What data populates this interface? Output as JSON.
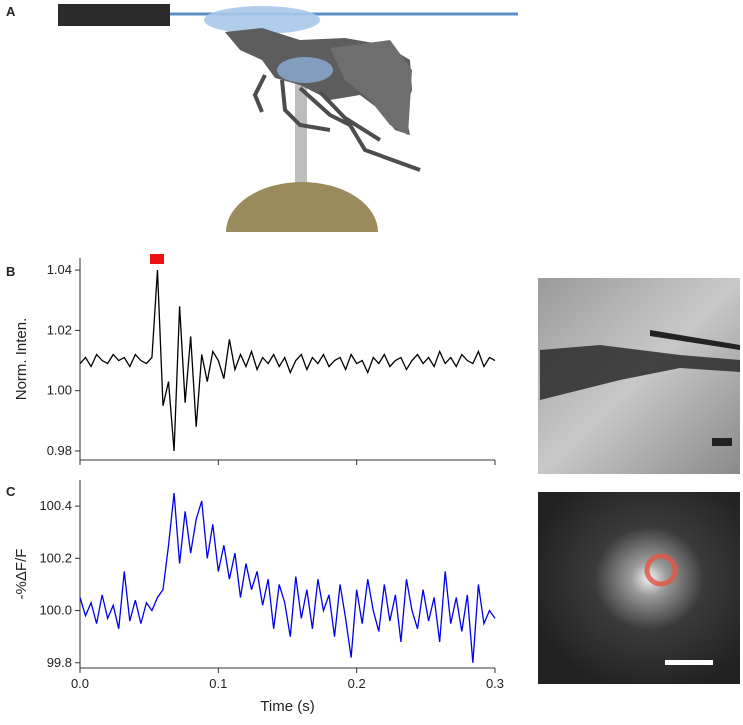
{
  "figure": {
    "panel_labels": [
      "A",
      "B",
      "C"
    ]
  },
  "chart_data": [
    {
      "type": "line",
      "ylabel": "Norm. Inten.",
      "x": [
        0,
        0.004,
        0.008,
        0.012,
        0.016,
        0.02,
        0.024,
        0.028,
        0.032,
        0.036,
        0.04,
        0.044,
        0.048,
        0.052,
        0.056,
        0.06,
        0.064,
        0.068,
        0.072,
        0.076,
        0.08,
        0.084,
        0.088,
        0.092,
        0.096,
        0.1,
        0.104,
        0.108,
        0.112,
        0.116,
        0.12,
        0.124,
        0.128,
        0.132,
        0.136,
        0.14,
        0.144,
        0.148,
        0.152,
        0.156,
        0.16,
        0.164,
        0.168,
        0.172,
        0.176,
        0.18,
        0.184,
        0.188,
        0.192,
        0.196,
        0.2,
        0.204,
        0.208,
        0.212,
        0.216,
        0.22,
        0.224,
        0.228,
        0.232,
        0.236,
        0.24,
        0.244,
        0.248,
        0.252,
        0.256,
        0.26,
        0.264,
        0.268,
        0.272,
        0.276,
        0.28,
        0.284,
        0.288,
        0.292,
        0.296,
        0.3
      ],
      "series": [
        {
          "color": "#000000",
          "values": [
            1.009,
            1.011,
            1.008,
            1.012,
            1.01,
            1.009,
            1.012,
            1.01,
            1.011,
            1.008,
            1.012,
            1.01,
            1.009,
            1.011,
            1.04,
            0.995,
            1.003,
            0.98,
            1.028,
            0.996,
            1.018,
            0.988,
            1.012,
            1.003,
            1.013,
            1.01,
            1.004,
            1.017,
            1.007,
            1.012,
            1.008,
            1.013,
            1.007,
            1.011,
            1.009,
            1.012,
            1.008,
            1.011,
            1.006,
            1.01,
            1.012,
            1.007,
            1.011,
            1.009,
            1.012,
            1.008,
            1.01,
            1.011,
            1.007,
            1.012,
            1.009,
            1.01,
            1.006,
            1.011,
            1.009,
            1.012,
            1.008,
            1.01,
            1.011,
            1.007,
            1.01,
            1.012,
            1.009,
            1.011,
            1.008,
            1.013,
            1.009,
            1.011,
            1.008,
            1.012,
            1.01,
            1.009,
            1.013,
            1.008,
            1.011,
            1.01
          ]
        }
      ],
      "xlim": [
        0,
        0.3
      ],
      "ylim": [
        0.977,
        1.044
      ],
      "yticks": [
        0.98,
        {
          "value": 1,
          "label": "1.00"
        },
        1.02,
        1.04
      ]
    },
    {
      "type": "line",
      "ylabel": "-%ΔF/F",
      "xlabel": "Time (s)",
      "x": [
        0,
        0.004,
        0.008,
        0.012,
        0.016,
        0.02,
        0.024,
        0.028,
        0.032,
        0.036,
        0.04,
        0.044,
        0.048,
        0.052,
        0.056,
        0.06,
        0.064,
        0.068,
        0.072,
        0.076,
        0.08,
        0.084,
        0.088,
        0.092,
        0.096,
        0.1,
        0.104,
        0.108,
        0.112,
        0.116,
        0.12,
        0.124,
        0.128,
        0.132,
        0.136,
        0.14,
        0.144,
        0.148,
        0.152,
        0.156,
        0.16,
        0.164,
        0.168,
        0.172,
        0.176,
        0.18,
        0.184,
        0.188,
        0.192,
        0.196,
        0.2,
        0.204,
        0.208,
        0.212,
        0.216,
        0.22,
        0.224,
        0.228,
        0.232,
        0.236,
        0.24,
        0.244,
        0.248,
        0.252,
        0.256,
        0.26,
        0.264,
        0.268,
        0.272,
        0.276,
        0.28,
        0.284,
        0.288,
        0.292,
        0.296,
        0.3
      ],
      "series": [
        {
          "color": "#0000ee",
          "values": [
            100.05,
            99.98,
            100.03,
            99.95,
            100.06,
            99.97,
            100.02,
            99.93,
            100.15,
            99.96,
            100.04,
            99.95,
            100.03,
            100.0,
            100.05,
            100.08,
            100.25,
            100.45,
            100.18,
            100.38,
            100.22,
            100.35,
            100.42,
            100.2,
            100.33,
            100.15,
            100.25,
            100.12,
            100.22,
            100.05,
            100.18,
            100.08,
            100.15,
            100.02,
            100.12,
            99.93,
            100.1,
            100.03,
            99.9,
            100.13,
            99.97,
            100.08,
            99.93,
            100.12,
            100.0,
            100.06,
            99.9,
            100.1,
            99.97,
            99.82,
            100.08,
            99.95,
            100.12,
            100.0,
            99.92,
            100.1,
            99.96,
            100.06,
            99.88,
            100.12,
            100.0,
            99.93,
            100.08,
            99.96,
            100.05,
            99.88,
            100.15,
            99.95,
            100.05,
            99.92,
            100.06,
            99.8,
            100.1,
            99.95,
            100.0,
            99.97
          ]
        }
      ],
      "xlim": [
        0,
        0.3
      ],
      "ylim": [
        99.78,
        100.5
      ],
      "xticks": [
        {
          "value": 0,
          "label": "0.0"
        },
        0.1,
        0.2,
        0.3
      ],
      "yticks": [
        99.8,
        {
          "value": 100,
          "label": "100.0"
        },
        100.2,
        100.4
      ]
    }
  ]
}
